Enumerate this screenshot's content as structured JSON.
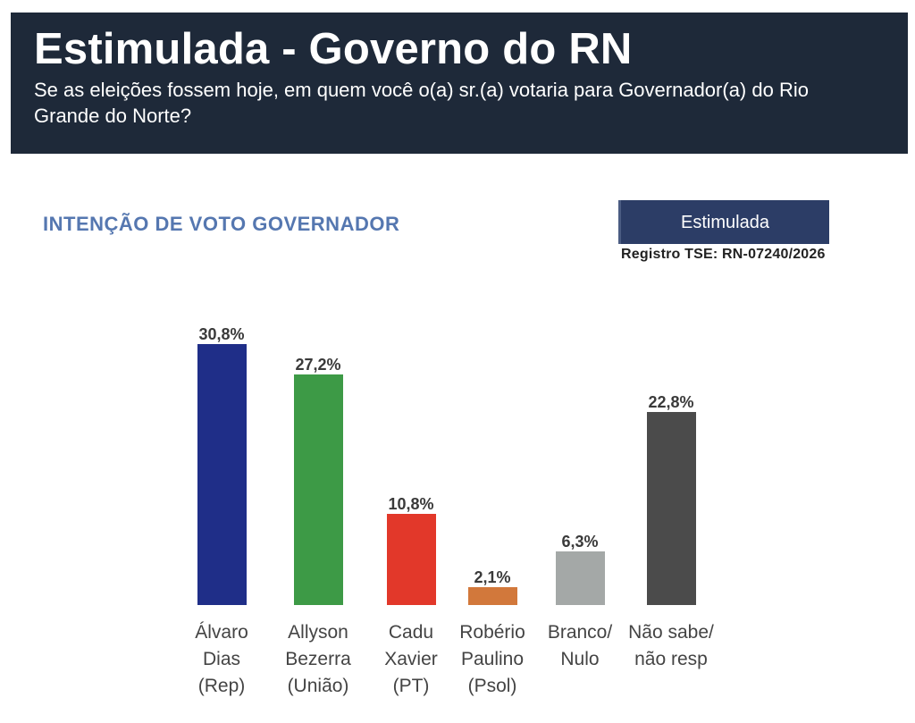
{
  "header": {
    "title": "Estimulada - Governo do RN",
    "question": "Se as eleições fossem hoje, em quem você o(a) sr.(a) votaria para Governador(a) do Rio Grande do Norte?"
  },
  "badge": {
    "label": "Estimulada"
  },
  "registration": "Registro TSE: RN-07240/2026",
  "colors": {
    "header_bg": "#1e2939",
    "badge_bg": "#2c3d66",
    "chart_title": "#5577b0"
  },
  "chart_data": {
    "type": "bar",
    "title": "INTENÇÃO DE VOTO GOVERNADOR",
    "xlabel": "",
    "ylabel": "",
    "categories": [
      "Álvaro\nDias\n(Rep)",
      "Allyson\nBezerra\n(União)",
      "Cadu\nXavier\n(PT)",
      "Robério\nPaulino\n(Psol)",
      "Branco/\nNulo",
      "Não sabe/\nnão resp"
    ],
    "values": [
      30.8,
      27.2,
      10.8,
      2.1,
      6.3,
      22.8
    ],
    "data_labels": [
      "30,8%",
      "27,2%",
      "10,8%",
      "2,1%",
      "6,3%",
      "22,8%"
    ],
    "colors": [
      "#1f2e88",
      "#3d9a46",
      "#e2382a",
      "#d2783b",
      "#a4a8a7",
      "#4b4b4b"
    ],
    "grid": false,
    "legend": false
  }
}
